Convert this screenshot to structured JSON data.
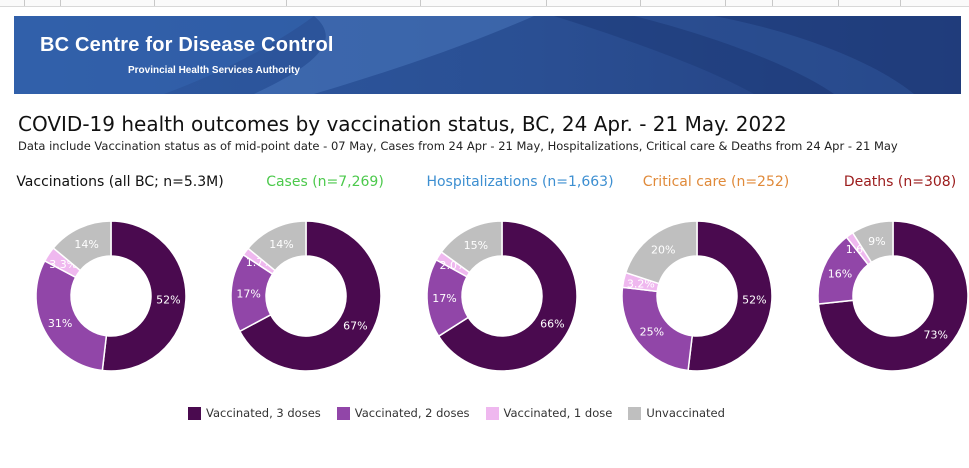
{
  "banner": {
    "title": "BC Centre for Disease Control",
    "subtitle": "Provincial Health Services Authority"
  },
  "colors": {
    "v3": "#4a0a4f",
    "v2": "#9146a8",
    "v1": "#efb8ef",
    "unvax": "#bfbfbf",
    "banner": "#2b4f94",
    "vaccinations_label": "#111111",
    "cases_label": "#4cc94c",
    "hosp_label": "#3d8fd1",
    "critical_label": "#e08a3a",
    "deaths_label": "#9b1b1b"
  },
  "chart_data": {
    "title": "COVID-19 health outcomes by vaccination status, BC,  24 Apr. - 21 May. 2022",
    "subtitle": "Data include Vaccination status as of mid-point date - 07 May, Cases  from  24 Apr - 21 May, Hospitalizations, Critical care & Deaths from 24 Apr - 21 May",
    "type": "pie",
    "categories": [
      "Vaccinated, 3 doses",
      "Vaccinated, 2 doses",
      "Vaccinated, 1 dose",
      "Unvaccinated"
    ],
    "charts": [
      {
        "label": "Vaccinations (all BC; n=5.3M)",
        "values": [
          52,
          31,
          3.3,
          14
        ],
        "labels": [
          "52%",
          "31%",
          "3.3%",
          "14%"
        ]
      },
      {
        "label": "Cases (n=7,269)",
        "values": [
          67,
          17,
          1.7,
          14
        ],
        "labels": [
          "67%",
          "17%",
          "1.7%",
          "14%"
        ]
      },
      {
        "label": "Hospitalizations (n=1,663)",
        "values": [
          66,
          17,
          2.0,
          15
        ],
        "labels": [
          "66%",
          "17%",
          "2.0%",
          "15%"
        ]
      },
      {
        "label": "Critical care (n=252)",
        "values": [
          52,
          25,
          3.2,
          20
        ],
        "labels": [
          "52%",
          "25%",
          "3.2%",
          "20%"
        ]
      },
      {
        "label": "Deaths (n=308)",
        "values": [
          73,
          16,
          1.6,
          9
        ],
        "labels": [
          "73%",
          "16%",
          "1.6%",
          "9%"
        ]
      }
    ],
    "legend": [
      "Vaccinated, 3 doses",
      "Vaccinated, 2 doses",
      "Vaccinated, 1 dose",
      "Unvaccinated"
    ],
    "legend_position": "bottom"
  }
}
